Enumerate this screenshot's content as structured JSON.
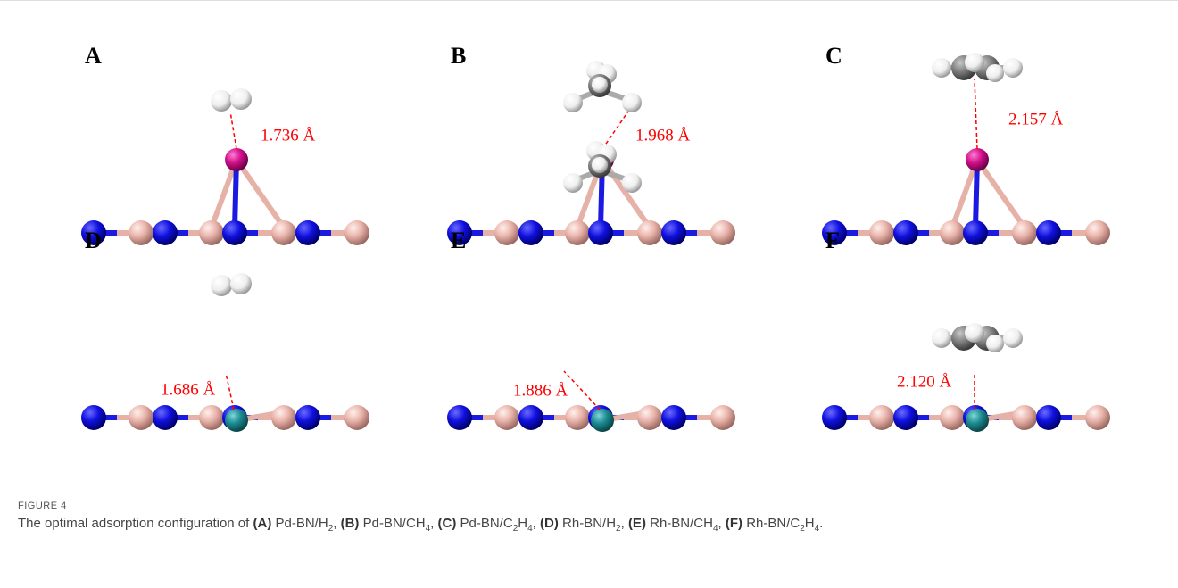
{
  "panels": [
    {
      "label": "A",
      "distance": "1.736 Å"
    },
    {
      "label": "B",
      "distance": "1.968 Å"
    },
    {
      "label": "C",
      "distance": "2.157 Å"
    },
    {
      "label": "D",
      "distance": "1.686 Å"
    },
    {
      "label": "E",
      "distance": "1.886 Å"
    },
    {
      "label": "F",
      "distance": "2.120 Å"
    }
  ],
  "caption": {
    "figure": "FIGURE 4",
    "intro": "The optimal adsorption configuration of",
    "items": [
      {
        "label": "(A)",
        "formula": [
          "Pd-BN/H",
          "2"
        ],
        "sep": ","
      },
      {
        "label": "(B)",
        "formula": [
          "Pd-BN/CH",
          "4"
        ],
        "sep": ","
      },
      {
        "label": "(C)",
        "formula": [
          "Pd-BN/C",
          "2",
          "H",
          "4"
        ],
        "sep": ","
      },
      {
        "label": "(D)",
        "formula": [
          "Rh-BN/H",
          "2"
        ],
        "sep": ","
      },
      {
        "label": "(E)",
        "formula": [
          "Rh-BN/CH",
          "4"
        ],
        "sep": ","
      },
      {
        "label": "(F)",
        "formula": [
          "Rh-BN/C",
          "2",
          "H",
          "4"
        ],
        "sep": "."
      }
    ]
  }
}
